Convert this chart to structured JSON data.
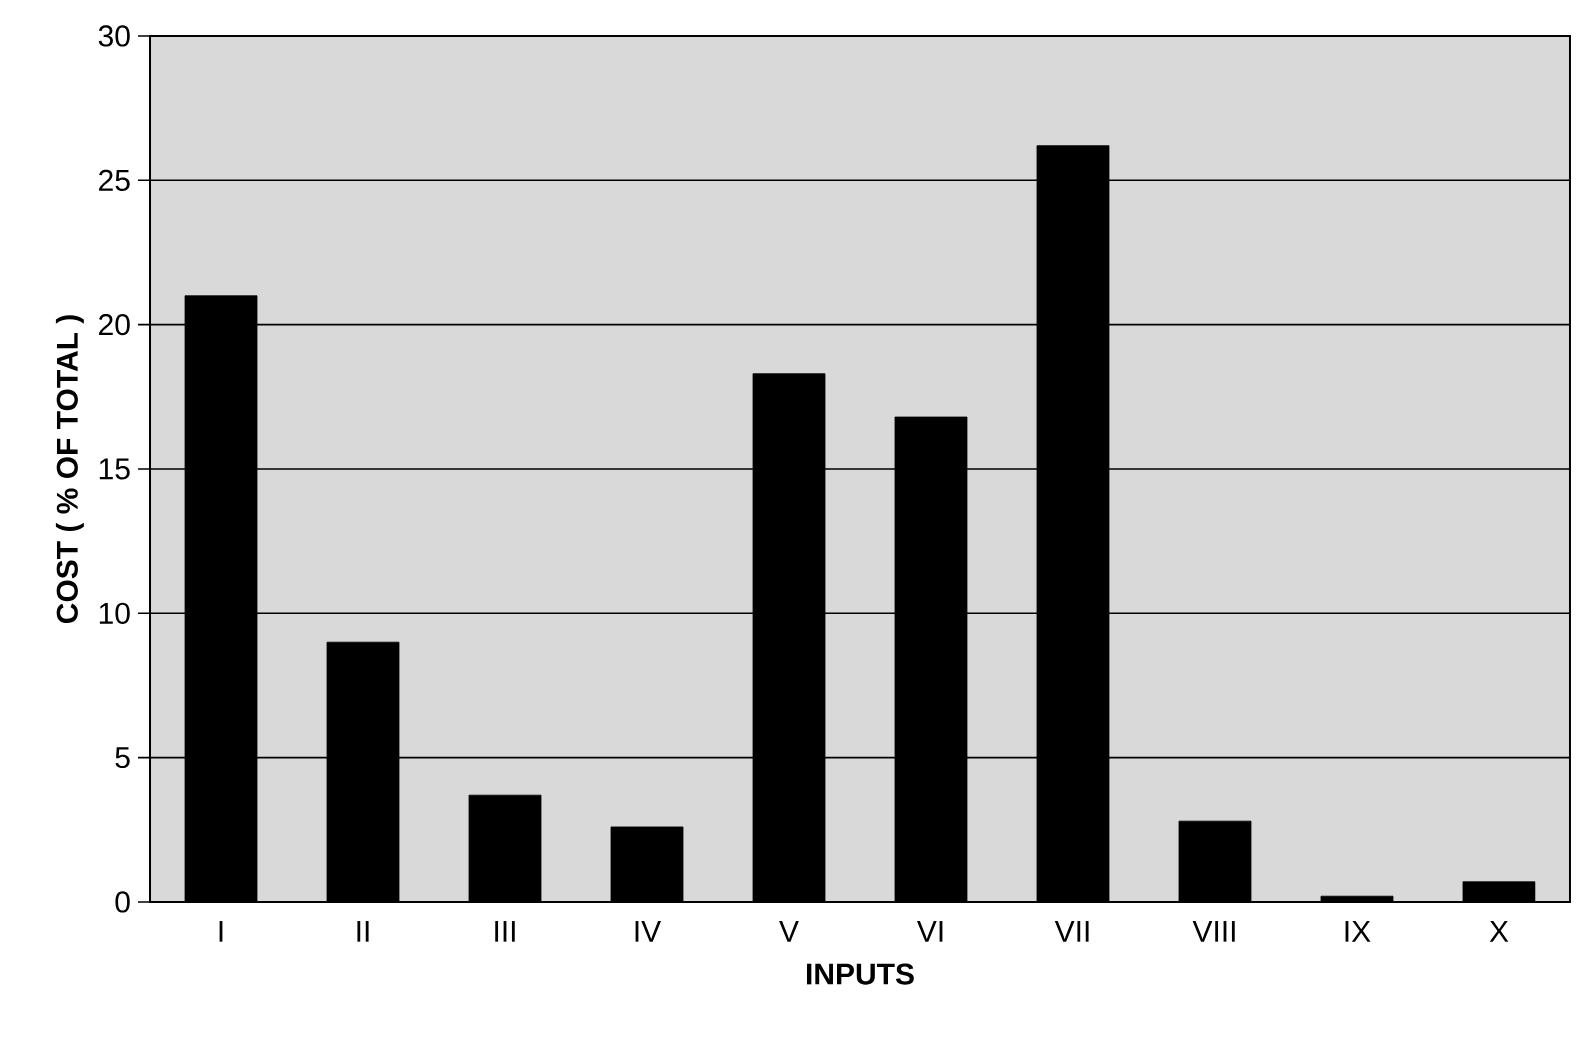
{
  "chart_data": {
    "type": "bar",
    "xlabel": "INPUTS",
    "ylabel": "COST ( % OF TOTAL )",
    "categories": [
      "I",
      "II",
      "III",
      "IV",
      "V",
      "VI",
      "VII",
      "VIII",
      "IX",
      "X"
    ],
    "values": [
      21.0,
      9.0,
      3.7,
      2.6,
      18.3,
      16.8,
      26.2,
      2.8,
      0.2,
      0.7
    ],
    "color": "#000000",
    "ylim": [
      0,
      30
    ],
    "yticks": [
      0,
      5,
      10,
      15,
      20,
      25,
      30
    ],
    "grid": "y"
  }
}
